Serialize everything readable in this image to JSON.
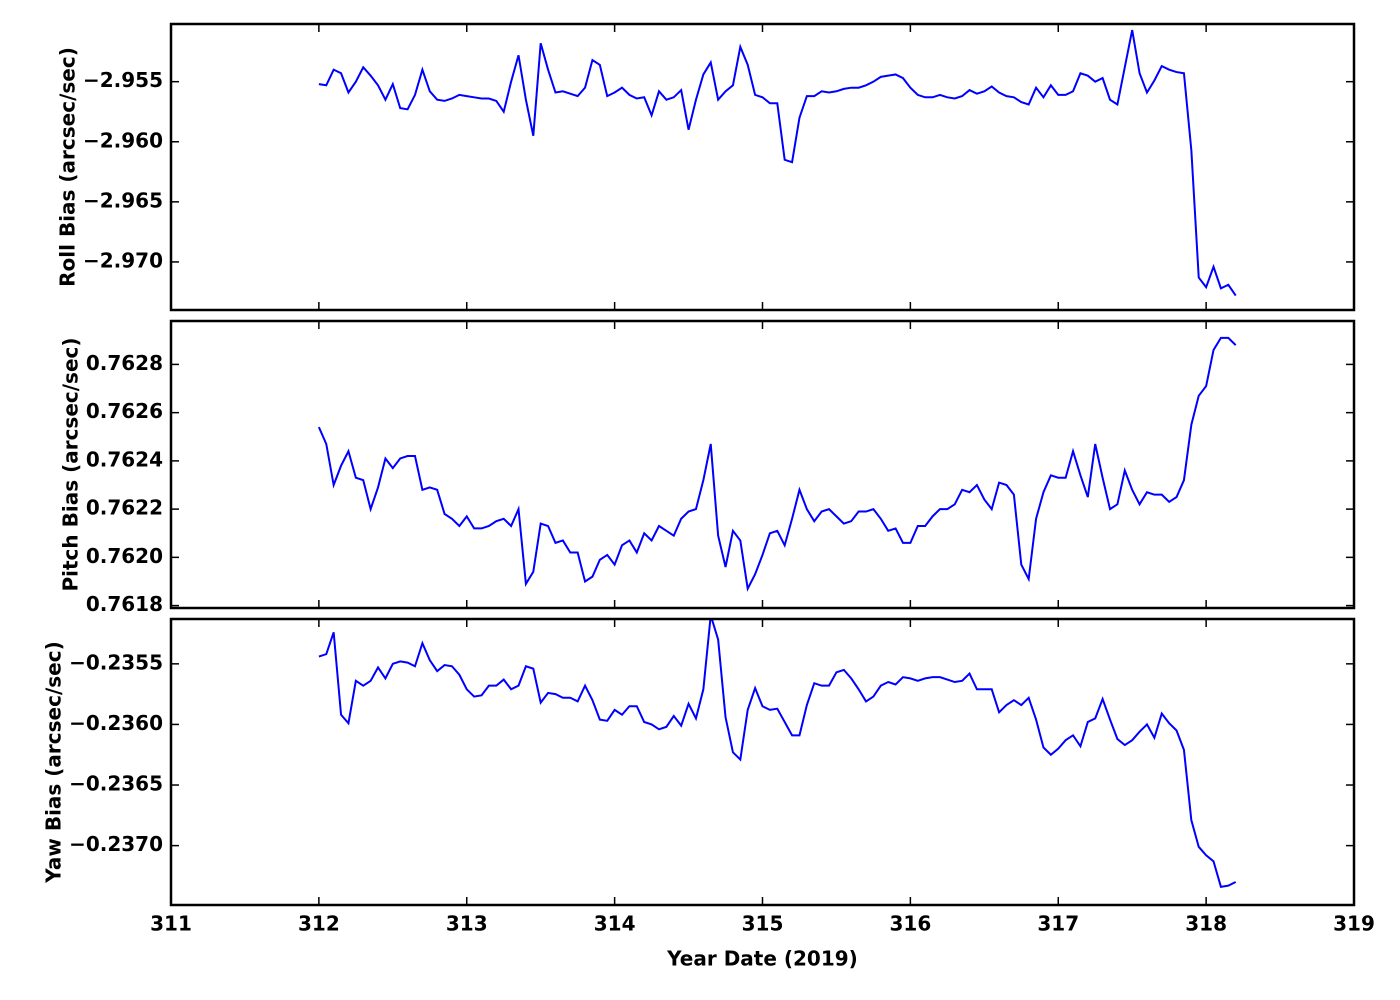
{
  "chart_data": [
    {
      "type": "line",
      "ylabel": "Roll Bias (arcsec/sec)",
      "x": [
        312,
        312.05,
        312.1,
        312.15,
        312.2,
        312.25,
        312.3,
        312.35,
        312.4,
        312.45,
        312.5,
        312.55,
        312.6,
        312.65,
        312.7,
        312.75,
        312.8,
        312.85,
        312.9,
        312.95,
        313,
        313.05,
        313.1,
        313.15,
        313.2,
        313.25,
        313.3,
        313.35,
        313.4,
        313.45,
        313.5,
        313.55,
        313.6,
        313.65,
        313.7,
        313.75,
        313.8,
        313.85,
        313.9,
        313.95,
        314,
        314.05,
        314.1,
        314.15,
        314.2,
        314.25,
        314.3,
        314.35,
        314.4,
        314.45,
        314.5,
        314.55,
        314.6,
        314.65,
        314.7,
        314.75,
        314.8,
        314.85,
        314.9,
        314.95,
        315,
        315.05,
        315.1,
        315.15,
        315.2,
        315.25,
        315.3,
        315.35,
        315.4,
        315.45,
        315.5,
        315.55,
        315.6,
        315.65,
        315.7,
        315.75,
        315.8,
        315.85,
        315.9,
        315.95,
        316,
        316.05,
        316.1,
        316.15,
        316.2,
        316.25,
        316.3,
        316.35,
        316.4,
        316.45,
        316.5,
        316.55,
        316.6,
        316.65,
        316.7,
        316.75,
        316.8,
        316.85,
        316.9,
        316.95,
        317,
        317.05,
        317.1,
        317.15,
        317.2,
        317.25,
        317.3,
        317.35,
        317.4,
        317.45,
        317.5,
        317.55,
        317.6,
        317.65,
        317.7,
        317.75,
        317.8,
        317.85,
        317.9,
        317.95,
        318,
        318.05,
        318.1,
        318.15,
        318.2
      ],
      "series": [
        {
          "color": "#0000ff",
          "values": [
            -2.9552,
            -2.9553,
            -2.954,
            -2.9543,
            -2.9559,
            -2.955,
            -2.9538,
            -2.9545,
            -2.9553,
            -2.9565,
            -2.9552,
            -2.9572,
            -2.9573,
            -2.9561,
            -2.954,
            -2.9558,
            -2.9565,
            -2.9566,
            -2.9564,
            -2.9561,
            -2.9562,
            -2.9563,
            -2.9564,
            -2.9564,
            -2.9566,
            -2.9575,
            -2.955,
            -2.9528,
            -2.9565,
            -2.9595,
            -2.9518,
            -2.954,
            -2.9559,
            -2.9558,
            -2.956,
            -2.9562,
            -2.9555,
            -2.9532,
            -2.9536,
            -2.9562,
            -2.9559,
            -2.9555,
            -2.9561,
            -2.9564,
            -2.9563,
            -2.9578,
            -2.9558,
            -2.9565,
            -2.9563,
            -2.9557,
            -2.959,
            -2.9565,
            -2.9544,
            -2.9534,
            -2.9565,
            -2.9558,
            -2.9553,
            -2.9521,
            -2.9536,
            -2.9561,
            -2.9563,
            -2.9568,
            -2.9568,
            -2.9615,
            -2.9617,
            -2.958,
            -2.9562,
            -2.9562,
            -2.9558,
            -2.9559,
            -2.9558,
            -2.9556,
            -2.9555,
            -2.9555,
            -2.9553,
            -2.955,
            -2.9546,
            -2.9545,
            -2.9544,
            -2.9547,
            -2.9555,
            -2.9561,
            -2.9563,
            -2.9563,
            -2.9561,
            -2.9563,
            -2.9564,
            -2.9562,
            -2.9557,
            -2.956,
            -2.9558,
            -2.9554,
            -2.9559,
            -2.9562,
            -2.9563,
            -2.9567,
            -2.9569,
            -2.9555,
            -2.9563,
            -2.9553,
            -2.9561,
            -2.9561,
            -2.9558,
            -2.9543,
            -2.9545,
            -2.955,
            -2.9547,
            -2.9565,
            -2.9569,
            -2.9538,
            -2.9507,
            -2.9543,
            -2.9559,
            -2.9549,
            -2.9537,
            -2.954,
            -2.9542,
            -2.9543,
            -2.9607,
            -2.9713,
            -2.9721,
            -2.9704,
            -2.9722,
            -2.9719,
            -2.9728
          ]
        }
      ],
      "xlim": [
        311,
        319
      ],
      "ylim": [
        -2.974,
        -2.9502
      ],
      "yticks": [
        {
          "value": -2.955,
          "label": "−2.955"
        },
        {
          "value": -2.96,
          "label": "−2.960"
        },
        {
          "value": -2.965,
          "label": "−2.965"
        },
        {
          "value": -2.97,
          "label": "−2.970"
        }
      ]
    },
    {
      "type": "line",
      "ylabel": "Pitch Bias (arcsec/sec)",
      "x": [
        312,
        312.05,
        312.1,
        312.15,
        312.2,
        312.25,
        312.3,
        312.35,
        312.4,
        312.45,
        312.5,
        312.55,
        312.6,
        312.65,
        312.7,
        312.75,
        312.8,
        312.85,
        312.9,
        312.95,
        313,
        313.05,
        313.1,
        313.15,
        313.2,
        313.25,
        313.3,
        313.35,
        313.4,
        313.45,
        313.5,
        313.55,
        313.6,
        313.65,
        313.7,
        313.75,
        313.8,
        313.85,
        313.9,
        313.95,
        314,
        314.05,
        314.1,
        314.15,
        314.2,
        314.25,
        314.3,
        314.35,
        314.4,
        314.45,
        314.5,
        314.55,
        314.6,
        314.65,
        314.7,
        314.75,
        314.8,
        314.85,
        314.9,
        314.95,
        315,
        315.05,
        315.1,
        315.15,
        315.2,
        315.25,
        315.3,
        315.35,
        315.4,
        315.45,
        315.5,
        315.55,
        315.6,
        315.65,
        315.7,
        315.75,
        315.8,
        315.85,
        315.9,
        315.95,
        316,
        316.05,
        316.1,
        316.15,
        316.2,
        316.25,
        316.3,
        316.35,
        316.4,
        316.45,
        316.5,
        316.55,
        316.6,
        316.65,
        316.7,
        316.75,
        316.8,
        316.85,
        316.9,
        316.95,
        317,
        317.05,
        317.1,
        317.15,
        317.2,
        317.25,
        317.3,
        317.35,
        317.4,
        317.45,
        317.5,
        317.55,
        317.6,
        317.65,
        317.7,
        317.75,
        317.8,
        317.85,
        317.9,
        317.95,
        318,
        318.05,
        318.1,
        318.15,
        318.2
      ],
      "series": [
        {
          "color": "#0000ff",
          "values": [
            0.76254,
            0.76247,
            0.7623,
            0.76238,
            0.76244,
            0.76233,
            0.76232,
            0.7622,
            0.76229,
            0.76241,
            0.76237,
            0.76241,
            0.76242,
            0.76242,
            0.76228,
            0.76229,
            0.76228,
            0.76218,
            0.76216,
            0.76213,
            0.76217,
            0.76212,
            0.76212,
            0.76213,
            0.76215,
            0.76216,
            0.76213,
            0.7622,
            0.76189,
            0.76194,
            0.76214,
            0.76213,
            0.76206,
            0.76207,
            0.76202,
            0.76202,
            0.7619,
            0.76192,
            0.76199,
            0.76201,
            0.76197,
            0.76205,
            0.76207,
            0.76202,
            0.7621,
            0.76207,
            0.76213,
            0.76211,
            0.76209,
            0.76216,
            0.76219,
            0.7622,
            0.76232,
            0.76247,
            0.76209,
            0.76196,
            0.76211,
            0.76207,
            0.76187,
            0.76193,
            0.76201,
            0.7621,
            0.76211,
            0.76205,
            0.76216,
            0.76228,
            0.7622,
            0.76215,
            0.76219,
            0.7622,
            0.76217,
            0.76214,
            0.76215,
            0.76219,
            0.76219,
            0.7622,
            0.76216,
            0.76211,
            0.76212,
            0.76206,
            0.76206,
            0.76213,
            0.76213,
            0.76217,
            0.7622,
            0.7622,
            0.76222,
            0.76228,
            0.76227,
            0.7623,
            0.76224,
            0.7622,
            0.76231,
            0.7623,
            0.76226,
            0.76197,
            0.76191,
            0.76216,
            0.76227,
            0.76234,
            0.76233,
            0.76233,
            0.76244,
            0.76234,
            0.76225,
            0.76247,
            0.76233,
            0.7622,
            0.76222,
            0.76236,
            0.76228,
            0.76222,
            0.76227,
            0.76226,
            0.76226,
            0.76223,
            0.76225,
            0.76232,
            0.76255,
            0.76267,
            0.76271,
            0.76286,
            0.76291,
            0.76291,
            0.76288
          ]
        }
      ],
      "xlim": [
        311,
        319
      ],
      "ylim": [
        0.76179,
        0.76298
      ],
      "yticks": [
        0.7618,
        {
          "value": 0.762,
          "label": "0.7620"
        },
        0.7622,
        0.7624,
        0.7626,
        0.7628
      ]
    },
    {
      "type": "line",
      "ylabel": "Yaw Bias (arcsec/sec)",
      "xlabel": "Year Date (2019)",
      "x": [
        312,
        312.05,
        312.1,
        312.15,
        312.2,
        312.25,
        312.3,
        312.35,
        312.4,
        312.45,
        312.5,
        312.55,
        312.6,
        312.65,
        312.7,
        312.75,
        312.8,
        312.85,
        312.9,
        312.95,
        313,
        313.05,
        313.1,
        313.15,
        313.2,
        313.25,
        313.3,
        313.35,
        313.4,
        313.45,
        313.5,
        313.55,
        313.6,
        313.65,
        313.7,
        313.75,
        313.8,
        313.85,
        313.9,
        313.95,
        314,
        314.05,
        314.1,
        314.15,
        314.2,
        314.25,
        314.3,
        314.35,
        314.4,
        314.45,
        314.5,
        314.55,
        314.6,
        314.65,
        314.7,
        314.75,
        314.8,
        314.85,
        314.9,
        314.95,
        315,
        315.05,
        315.1,
        315.15,
        315.2,
        315.25,
        315.3,
        315.35,
        315.4,
        315.45,
        315.5,
        315.55,
        315.6,
        315.65,
        315.7,
        315.75,
        315.8,
        315.85,
        315.9,
        315.95,
        316,
        316.05,
        316.1,
        316.15,
        316.2,
        316.25,
        316.3,
        316.35,
        316.4,
        316.45,
        316.5,
        316.55,
        316.6,
        316.65,
        316.7,
        316.75,
        316.8,
        316.85,
        316.9,
        316.95,
        317,
        317.05,
        317.1,
        317.15,
        317.2,
        317.25,
        317.3,
        317.35,
        317.4,
        317.45,
        317.5,
        317.55,
        317.6,
        317.65,
        317.7,
        317.75,
        317.8,
        317.85,
        317.9,
        317.95,
        318,
        318.05,
        318.1,
        318.15,
        318.2
      ],
      "series": [
        {
          "color": "#0000ff",
          "values": [
            -0.23544,
            -0.23542,
            -0.23524,
            -0.23592,
            -0.23599,
            -0.23564,
            -0.23568,
            -0.23564,
            -0.23553,
            -0.23562,
            -0.2355,
            -0.23548,
            -0.23549,
            -0.23552,
            -0.23533,
            -0.23547,
            -0.23556,
            -0.23551,
            -0.23552,
            -0.23559,
            -0.23571,
            -0.23577,
            -0.23576,
            -0.23568,
            -0.23568,
            -0.23563,
            -0.23571,
            -0.23568,
            -0.23552,
            -0.23554,
            -0.23582,
            -0.23574,
            -0.23575,
            -0.23578,
            -0.23578,
            -0.23581,
            -0.23568,
            -0.2358,
            -0.23596,
            -0.23597,
            -0.23588,
            -0.23592,
            -0.23585,
            -0.23585,
            -0.23598,
            -0.236,
            -0.23604,
            -0.23602,
            -0.23593,
            -0.23601,
            -0.23583,
            -0.23595,
            -0.23571,
            -0.2351,
            -0.2353,
            -0.23594,
            -0.23623,
            -0.23629,
            -0.23588,
            -0.2357,
            -0.23585,
            -0.23588,
            -0.23587,
            -0.23598,
            -0.23609,
            -0.23609,
            -0.23584,
            -0.23566,
            -0.23568,
            -0.23568,
            -0.23557,
            -0.23555,
            -0.23562,
            -0.23571,
            -0.23581,
            -0.23577,
            -0.23568,
            -0.23565,
            -0.23567,
            -0.23561,
            -0.23562,
            -0.23564,
            -0.23562,
            -0.23561,
            -0.23561,
            -0.23563,
            -0.23565,
            -0.23564,
            -0.23558,
            -0.23571,
            -0.23571,
            -0.23571,
            -0.2359,
            -0.23584,
            -0.2358,
            -0.23584,
            -0.23578,
            -0.23596,
            -0.23619,
            -0.23625,
            -0.2362,
            -0.23613,
            -0.23609,
            -0.23618,
            -0.23598,
            -0.23595,
            -0.23579,
            -0.23596,
            -0.23612,
            -0.23617,
            -0.23613,
            -0.23606,
            -0.236,
            -0.23611,
            -0.23591,
            -0.23599,
            -0.23605,
            -0.23621,
            -0.23679,
            -0.23701,
            -0.23708,
            -0.23713,
            -0.23734,
            -0.23733,
            -0.2373
          ]
        }
      ],
      "xlim": [
        311,
        319
      ],
      "ylim": [
        -0.23749,
        -0.23513
      ],
      "xticks": [
        311,
        312,
        313,
        314,
        315,
        316,
        317,
        318,
        319
      ],
      "yticks": [
        {
          "value": -0.2355,
          "label": "−0.2355"
        },
        {
          "value": -0.236,
          "label": "−0.2360"
        },
        {
          "value": -0.2365,
          "label": "−0.2365"
        },
        {
          "value": -0.237,
          "label": "−0.2370"
        }
      ]
    }
  ]
}
